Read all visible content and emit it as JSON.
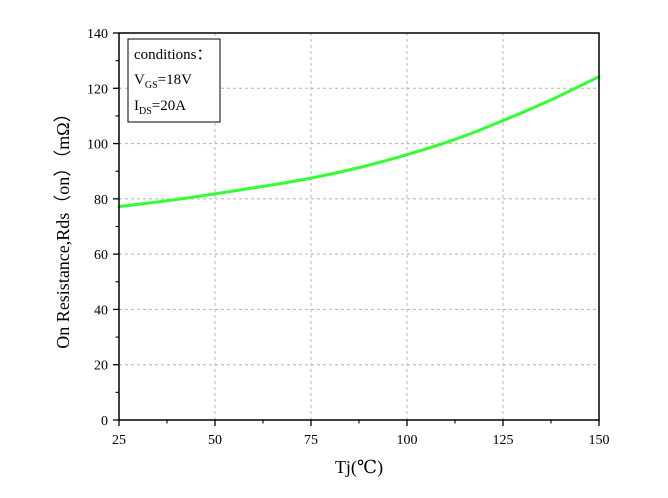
{
  "chart_data": {
    "type": "line",
    "title": "",
    "xlabel": "Tj(℃)",
    "ylabel": "On Resistance,Rds（on）（mΩ）",
    "xlim": [
      25,
      150
    ],
    "ylim": [
      0,
      140
    ],
    "xticks": [
      25,
      50,
      75,
      100,
      125,
      150
    ],
    "yticks": [
      0,
      20,
      40,
      60,
      80,
      100,
      120,
      140
    ],
    "grid": true,
    "series": [
      {
        "color": "#33ff33",
        "x": [
          25,
          37.5,
          50,
          62.5,
          75,
          87.5,
          100,
          112.5,
          125,
          137.5,
          150
        ],
        "y": [
          77.2,
          79.3,
          81.8,
          84.5,
          87.5,
          91.3,
          96.0,
          101.5,
          108.3,
          115.8,
          124.2
        ]
      }
    ],
    "annotation": {
      "line1": "conditions：",
      "vgs_main": "V",
      "vgs_sub": "GS",
      "vgs_value": "=18V",
      "ids_main": "I",
      "ids_sub": "DS",
      "ids_value": "=20A"
    }
  }
}
